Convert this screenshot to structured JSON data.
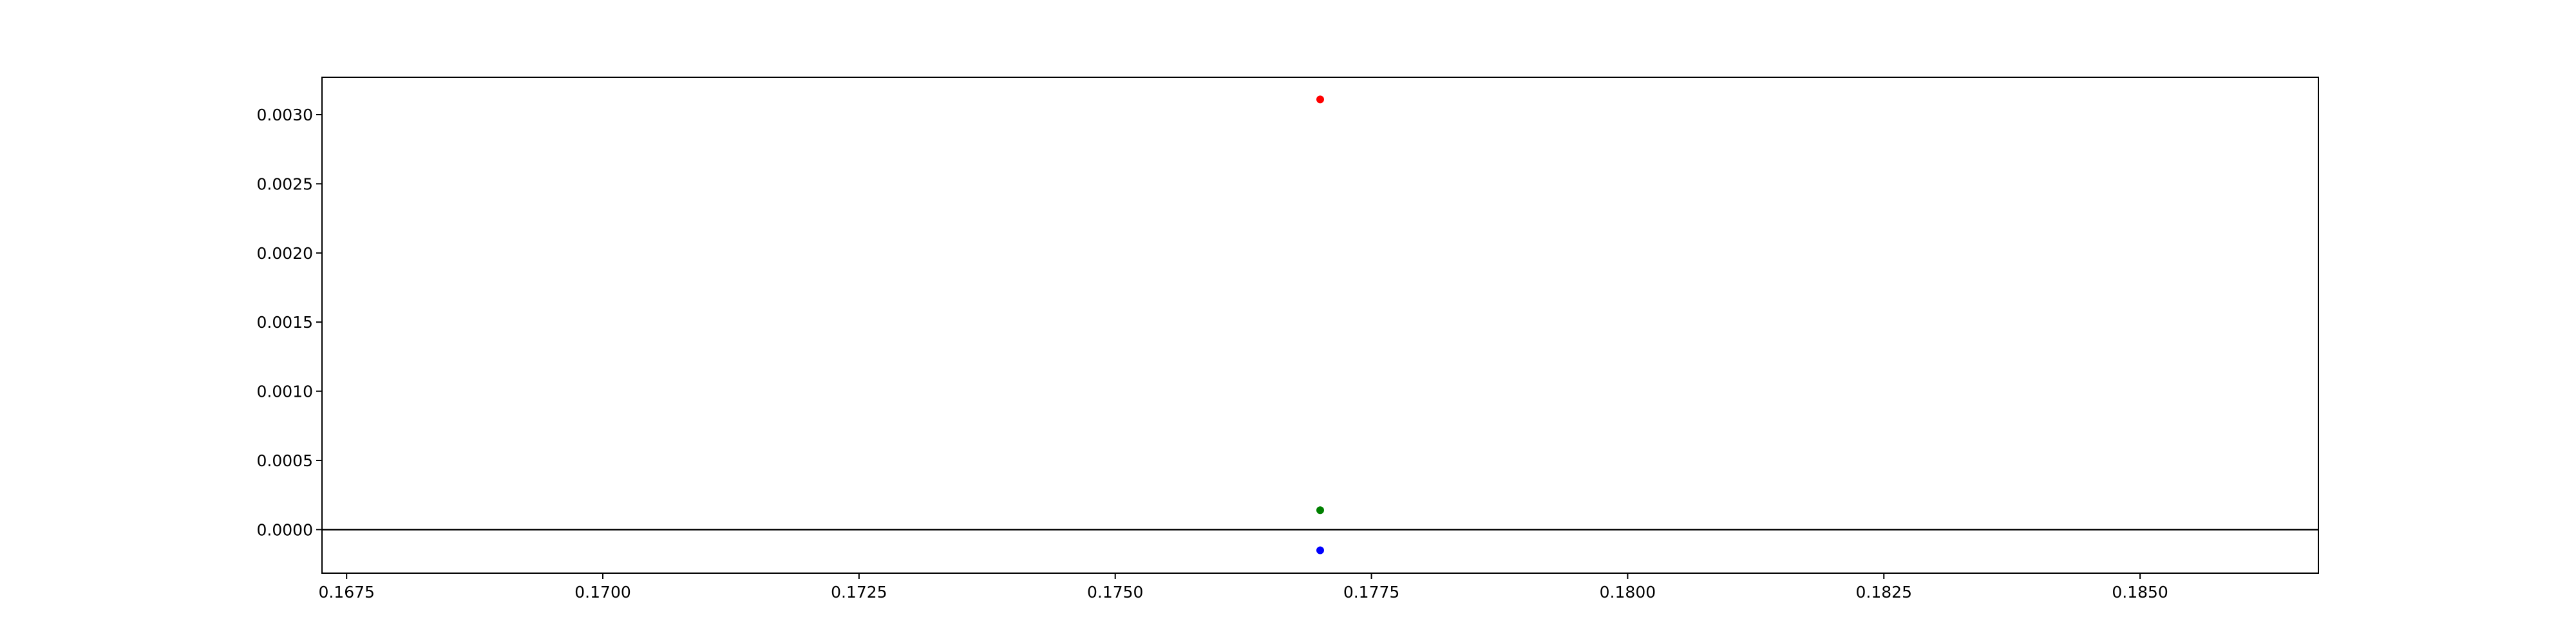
{
  "chart_data": {
    "type": "scatter",
    "title": "",
    "xlabel": "",
    "ylabel": "",
    "xlim": [
      0.16726,
      0.18674
    ],
    "ylim": [
      -0.000315,
      0.00327
    ],
    "grid": false,
    "legend": null,
    "x_ticks": [
      {
        "value": 0.1675,
        "label": "0.1675"
      },
      {
        "value": 0.17,
        "label": "0.1700"
      },
      {
        "value": 0.1725,
        "label": "0.1725"
      },
      {
        "value": 0.175,
        "label": "0.1750"
      },
      {
        "value": 0.1775,
        "label": "0.1775"
      },
      {
        "value": 0.18,
        "label": "0.1800"
      },
      {
        "value": 0.1825,
        "label": "0.1825"
      },
      {
        "value": 0.185,
        "label": "0.1850"
      }
    ],
    "y_ticks": [
      {
        "value": 0.0,
        "label": "0.0000"
      },
      {
        "value": 0.0005,
        "label": "0.0005"
      },
      {
        "value": 0.001,
        "label": "0.0010"
      },
      {
        "value": 0.0015,
        "label": "0.0015"
      },
      {
        "value": 0.002,
        "label": "0.0020"
      },
      {
        "value": 0.0025,
        "label": "0.0025"
      },
      {
        "value": 0.003,
        "label": "0.0030"
      }
    ],
    "reference_line": {
      "y": 0.0,
      "color": "#000000"
    },
    "points": [
      {
        "x": 0.177,
        "y": 0.00311,
        "color": "#ff0000"
      },
      {
        "x": 0.177,
        "y": 0.00014,
        "color": "#008000"
      },
      {
        "x": 0.177,
        "y": -0.00015,
        "color": "#0000ff"
      }
    ]
  }
}
